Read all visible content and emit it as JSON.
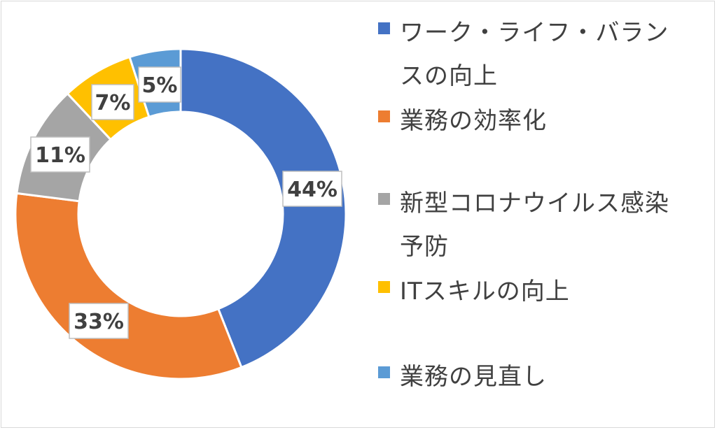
{
  "chart_data": {
    "type": "pie",
    "variant": "donut",
    "categories": [
      "ワーク・ライフ・バランスの向上",
      "業務の効率化",
      "新型コロナウイルス感染予防",
      "ITスキルの向上",
      "業務の見直し"
    ],
    "values": [
      44,
      33,
      11,
      7,
      5
    ],
    "labels": [
      "44%",
      "33%",
      "11%",
      "7%",
      "5%"
    ],
    "colors": [
      "#4472C4",
      "#ED7D31",
      "#A5A5A5",
      "#FFC000",
      "#5B9BD5"
    ],
    "legend_position": "right",
    "title": ""
  },
  "legend": {
    "items": [
      {
        "label_line1": "ワーク・ライフ・バラン",
        "label_line2": "スの向上",
        "color": "#4472C4"
      },
      {
        "label_line1": "業務の効率化",
        "label_line2": "",
        "color": "#ED7D31"
      },
      {
        "label_line1": "新型コロナウイルス感染",
        "label_line2": "予防",
        "color": "#A5A5A5"
      },
      {
        "label_line1": "ITスキルの向上",
        "label_line2": "",
        "color": "#FFC000"
      },
      {
        "label_line1": "業務の見直し",
        "label_line2": "",
        "color": "#5B9BD5"
      }
    ]
  }
}
